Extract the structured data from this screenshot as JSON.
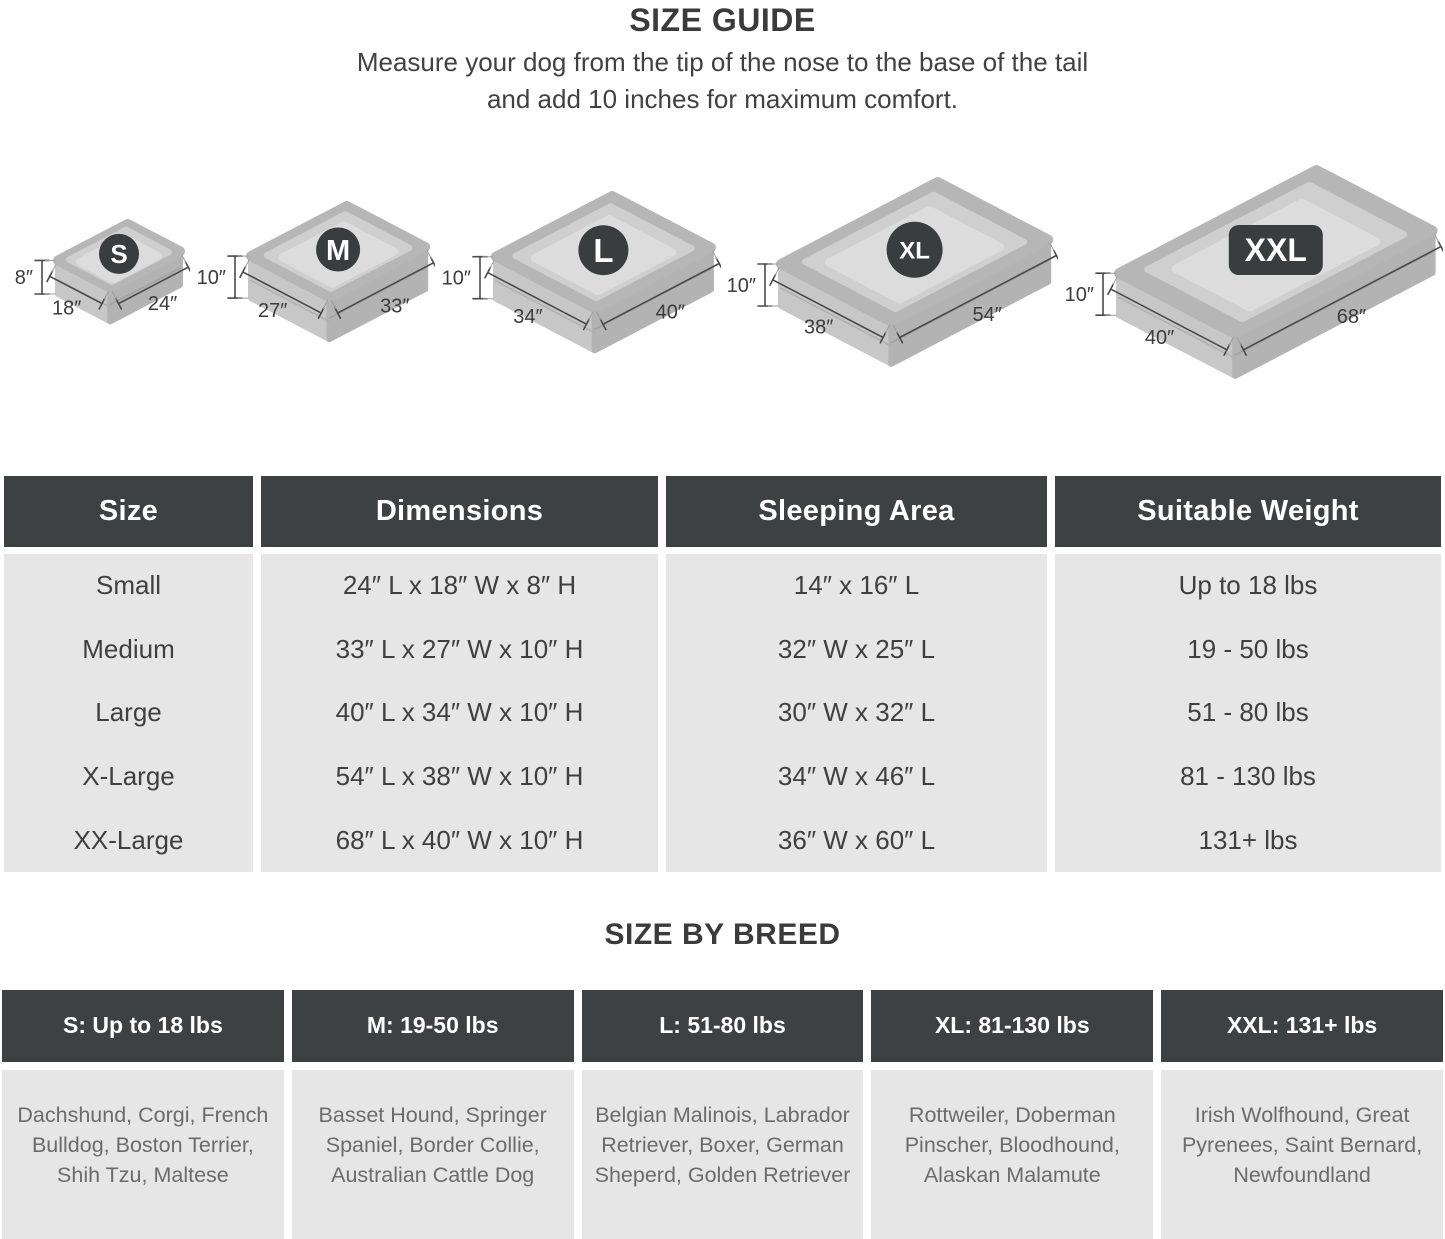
{
  "page": {
    "title": "SIZE GUIDE",
    "subtitle_line1": "Measure your dog from the tip of the nose to the base of the tail",
    "subtitle_line2": "and add 10 inches for maximum comfort."
  },
  "beds": [
    {
      "label": "S",
      "height_label": "8″",
      "width_label": "18″",
      "length_label": "24″",
      "length_in": 24,
      "width_in": 18,
      "height_in": 8,
      "badge": "circle"
    },
    {
      "label": "M",
      "height_label": "10″",
      "width_label": "27″",
      "length_label": "33″",
      "length_in": 33,
      "width_in": 27,
      "height_in": 10,
      "badge": "circle"
    },
    {
      "label": "L",
      "height_label": "10″",
      "width_label": "34″",
      "length_label": "40″",
      "length_in": 40,
      "width_in": 34,
      "height_in": 10,
      "badge": "circle"
    },
    {
      "label": "XL",
      "height_label": "10″",
      "width_label": "38″",
      "length_label": "54″",
      "length_in": 54,
      "width_in": 38,
      "height_in": 10,
      "badge": "circle"
    },
    {
      "label": "XXL",
      "height_label": "10″",
      "width_label": "40″",
      "length_label": "68″",
      "length_in": 68,
      "width_in": 40,
      "height_in": 10,
      "badge": "rounded-rect"
    }
  ],
  "size_table": {
    "columns": [
      "Size",
      "Dimensions",
      "Sleeping Area",
      "Suitable Weight"
    ],
    "rows": [
      [
        "Small",
        "24″ L x 18″ W x 8″ H",
        "14″ x 16″ L",
        "Up to 18 lbs"
      ],
      [
        "Medium",
        "33″ L x 27″ W x 10″ H",
        "32″ W x 25″ L",
        "19 - 50 lbs"
      ],
      [
        "Large",
        "40″ L x 34″ W x 10″ H",
        "30″ W x 32″ L",
        "51 - 80 lbs"
      ],
      [
        "X-Large",
        "54″ L x 38″ W x 10″ H",
        "34″ W x 46″ L",
        "81 - 130 lbs"
      ],
      [
        "XX-Large",
        "68″ L x 40″ W x 10″ H",
        "36″ W x 60″ L",
        "131+ lbs"
      ]
    ]
  },
  "breed_section": {
    "title": "SIZE BY BREED",
    "columns": [
      {
        "header": "S: Up to 18 lbs",
        "breeds": "Dachshund, Corgi, French Bulldog, Boston Terrier, Shih Tzu, Maltese"
      },
      {
        "header": "M: 19-50 lbs",
        "breeds": "Basset Hound, Springer Spaniel, Border Collie, Australian Cattle Dog"
      },
      {
        "header": "L: 51-80 lbs",
        "breeds": "Belgian Malinois, Labrador Retriever, Boxer, German Sheperd, Golden Retriever"
      },
      {
        "header": "XL: 81-130 lbs",
        "breeds": "Rottweiler, Doberman Pinscher, Bloodhound, Alaskan Malamute"
      },
      {
        "header": "XXL: 131+ lbs",
        "breeds": "Irish Wolfhound, Great Pyrenees, Saint Bernard, Newfoundland"
      }
    ]
  },
  "colors": {
    "header_bg": "#3E4142",
    "cell_bg": "#E6E6E6",
    "badge_bg": "#3A3D3E",
    "title_text": "#3B3B3B",
    "body_text": "#3F3F3F",
    "breed_text": "#6B6B6B"
  }
}
